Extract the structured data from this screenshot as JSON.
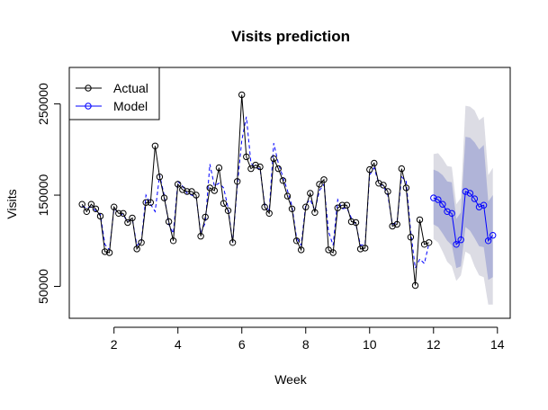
{
  "chart_data": {
    "type": "line",
    "title": "Visits prediction",
    "xlabel": "Week",
    "ylabel": "Visits",
    "xlim": [
      0.6,
      14.4
    ],
    "ylim": [
      15000,
      290000
    ],
    "x_ticks": [
      2,
      4,
      6,
      8,
      10,
      12,
      14
    ],
    "y_ticks": [
      50000,
      150000,
      250000
    ],
    "x_tick_labels": [
      "2",
      "4",
      "6",
      "8",
      "10",
      "12",
      "14"
    ],
    "y_tick_labels": [
      "50000",
      "150000",
      "250000"
    ],
    "grid": false,
    "legend": {
      "position": "top-left",
      "entries": [
        {
          "label": "Actual",
          "color": "#000000",
          "marker": "open-circle"
        },
        {
          "label": "Model",
          "color": "#0000ff",
          "marker": "open-circle"
        }
      ]
    },
    "series": [
      {
        "name": "Actual",
        "color": "#000000",
        "style": "solid-with-open-circles",
        "x": [
          1.0,
          1.143,
          1.286,
          1.429,
          1.571,
          1.714,
          1.857,
          2.0,
          2.143,
          2.286,
          2.429,
          2.571,
          2.714,
          2.857,
          3.0,
          3.143,
          3.286,
          3.429,
          3.571,
          3.714,
          3.857,
          4.0,
          4.143,
          4.286,
          4.429,
          4.571,
          4.714,
          4.857,
          5.0,
          5.143,
          5.286,
          5.429,
          5.571,
          5.714,
          5.857,
          6.0,
          6.143,
          6.286,
          6.429,
          6.571,
          6.714,
          6.857,
          7.0,
          7.143,
          7.286,
          7.429,
          7.571,
          7.714,
          7.857,
          8.0,
          8.143,
          8.286,
          8.429,
          8.571,
          8.714,
          8.857,
          9.0,
          9.143,
          9.286,
          9.429,
          9.571,
          9.714,
          9.857,
          10.0,
          10.143,
          10.286,
          10.429,
          10.571,
          10.714,
          10.857,
          11.0,
          11.143,
          11.286,
          11.429,
          11.571,
          11.714,
          11.857
        ],
        "y": [
          140000,
          132000,
          140000,
          135000,
          127000,
          88000,
          87000,
          137000,
          130000,
          130000,
          120000,
          125000,
          91000,
          98000,
          142000,
          142000,
          204000,
          170000,
          147000,
          121000,
          100000,
          162000,
          156000,
          154000,
          154000,
          150000,
          105000,
          126000,
          158000,
          155000,
          180000,
          141000,
          133000,
          98000,
          165000,
          260000,
          192000,
          179000,
          183000,
          181000,
          137000,
          130000,
          190000,
          179000,
          166000,
          149000,
          135000,
          100000,
          90000,
          137000,
          152000,
          131000,
          162000,
          167000,
          90000,
          87000,
          136000,
          139000,
          139000,
          121000,
          120000,
          91000,
          92000,
          178000,
          185000,
          163000,
          161000,
          154000,
          116000,
          118000,
          179000,
          158000,
          104000,
          51000,
          123000,
          96000,
          98000
        ]
      },
      {
        "name": "Model",
        "color": "#0000ff",
        "style": "dashed-fitted-then-solid-with-open-circles-forecast",
        "fitted_x": [
          1.0,
          1.143,
          1.286,
          1.429,
          1.571,
          1.714,
          1.857,
          2.0,
          2.143,
          2.286,
          2.429,
          2.571,
          2.714,
          2.857,
          3.0,
          3.143,
          3.286,
          3.429,
          3.571,
          3.714,
          3.857,
          4.0,
          4.143,
          4.286,
          4.429,
          4.571,
          4.714,
          4.857,
          5.0,
          5.143,
          5.286,
          5.429,
          5.571,
          5.714,
          5.857,
          6.0,
          6.143,
          6.286,
          6.429,
          6.571,
          6.714,
          6.857,
          7.0,
          7.143,
          7.286,
          7.429,
          7.571,
          7.714,
          7.857,
          8.0,
          8.143,
          8.286,
          8.429,
          8.571,
          8.714,
          8.857,
          9.0,
          9.143,
          9.286,
          9.429,
          9.571,
          9.714,
          9.857,
          10.0,
          10.143,
          10.286,
          10.429,
          10.571,
          10.714,
          10.857,
          11.0,
          11.143,
          11.286,
          11.429,
          11.571,
          11.714,
          11.857
        ],
        "fitted_y": [
          138000,
          136000,
          137000,
          133000,
          129000,
          96000,
          90000,
          135000,
          131000,
          128000,
          121000,
          124000,
          95000,
          99000,
          150000,
          140000,
          132000,
          172000,
          150000,
          118000,
          108000,
          165000,
          160000,
          152000,
          150000,
          148000,
          108000,
          120000,
          184000,
          160000,
          163000,
          158000,
          136000,
          98000,
          160000,
          210000,
          236000,
          185000,
          180000,
          179000,
          140000,
          133000,
          207000,
          185000,
          170000,
          155000,
          138000,
          103000,
          95000,
          140000,
          145000,
          133000,
          155000,
          162000,
          110000,
          95000,
          145000,
          135000,
          136000,
          125000,
          118000,
          95000,
          96000,
          172000,
          180000,
          163000,
          160000,
          150000,
          118000,
          120000,
          170000,
          165000,
          110000,
          70000,
          80000,
          75000,
          97000
        ],
        "forecast_x": [
          12.0,
          12.143,
          12.286,
          12.429,
          12.571,
          12.714,
          12.857,
          13.0,
          13.143,
          13.286,
          13.429,
          13.571,
          13.714,
          13.857
        ],
        "forecast_y": [
          147000,
          145000,
          140000,
          132000,
          130000,
          96000,
          101000,
          154000,
          152000,
          146000,
          137000,
          139000,
          100000,
          106000
        ],
        "interval_80_lower": [
          118000,
          115000,
          108000,
          100000,
          95000,
          70000,
          72000,
          115000,
          111000,
          103000,
          94000,
          93000,
          57000,
          60000
        ],
        "interval_80_upper": [
          178000,
          176000,
          172000,
          165000,
          164000,
          124000,
          131000,
          214000,
          213000,
          208000,
          200000,
          205000,
          143000,
          150000
        ],
        "interval_95_lower": [
          102000,
          98000,
          88000,
          77000,
          72000,
          56000,
          62000,
          88000,
          85000,
          72000,
          62000,
          60000,
          30000,
          30000
        ],
        "interval_95_upper": [
          195000,
          196000,
          190000,
          182000,
          181000,
          140000,
          147000,
          248000,
          247000,
          243000,
          232000,
          236000,
          172000,
          180000
        ]
      }
    ],
    "band_colors": {
      "inner_80": "#b0b4d8",
      "outer_95": "#dcdce4"
    }
  }
}
